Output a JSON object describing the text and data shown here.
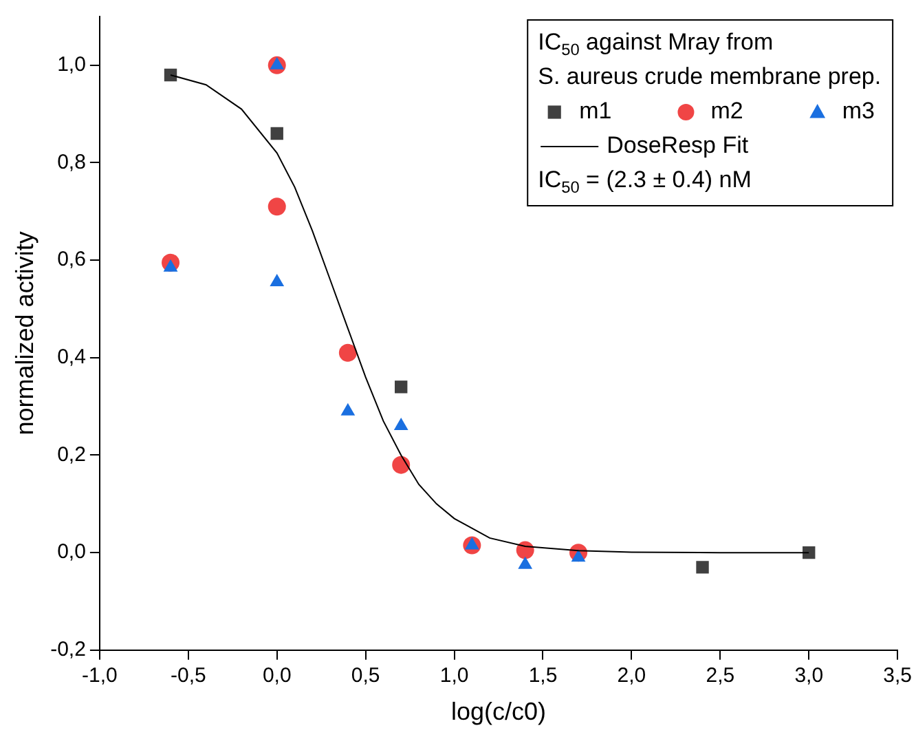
{
  "chart_data": {
    "type": "scatter",
    "xlabel": "log(c/c0)",
    "ylabel": "normalized activity",
    "legend_title": "IC$_{50}$ against Mray from\nS. aureus crude membrane prep.",
    "annotations": [
      "IC$_{50}$ = (2.3 ± 0.4) nM"
    ],
    "legend": "top right",
    "grid": false,
    "xlim": [
      -1.0,
      3.5
    ],
    "xticks": [
      {
        "value": -1.0,
        "label": "-1,0"
      },
      {
        "value": -0.5,
        "label": "-0,5"
      },
      {
        "value": 0,
        "label": "0,0"
      },
      {
        "value": 0.5,
        "label": "0,5"
      },
      {
        "value": 1.0,
        "label": "1,0"
      },
      {
        "value": 1.5,
        "label": "1,5"
      },
      {
        "value": 2.0,
        "label": "2,0"
      },
      {
        "value": 2.5,
        "label": "2,5"
      },
      {
        "value": 3.0,
        "label": "3,0"
      },
      {
        "value": 3.5,
        "label": "3,5"
      }
    ],
    "ylim": [
      -0.2,
      1.1
    ],
    "yticks": [
      {
        "value": -0.2,
        "label": "-0,2"
      },
      {
        "value": 0,
        "label": "0,0"
      },
      {
        "value": 0.2,
        "label": "0,2"
      },
      {
        "value": 0.4,
        "label": "0,4"
      },
      {
        "value": 0.6,
        "label": "0,6"
      },
      {
        "value": 0.8,
        "label": "0,8"
      },
      {
        "value": 1.0,
        "label": "1,0"
      }
    ],
    "series": [
      {
        "name": "m1",
        "marker": "square",
        "color": "#404040",
        "x": [
          -0.6,
          0,
          0.7,
          2.4,
          3.0
        ],
        "values": [
          0.98,
          0.86,
          0.34,
          -0.03,
          0.0
        ]
      },
      {
        "name": "m2",
        "marker": "circle",
        "color": "#f04545",
        "x": [
          -0.6,
          0,
          0,
          0.4,
          0.7,
          1.1,
          1.4,
          1.7
        ],
        "values": [
          0.595,
          1.0,
          0.71,
          0.41,
          0.18,
          0.015,
          0.005,
          0.0
        ]
      },
      {
        "name": "m3",
        "marker": "triangle",
        "color": "#1a6fe0",
        "x": [
          -0.6,
          0,
          0,
          0.4,
          0.7,
          1.1,
          1.4,
          1.7
        ],
        "values": [
          0.585,
          1.0,
          0.555,
          0.29,
          0.26,
          0.015,
          -0.025,
          -0.01
        ]
      },
      {
        "name": "DoseResp Fit",
        "type": "line",
        "marker": "none",
        "line_style": "solid",
        "color": "#000000",
        "x": [
          -0.6,
          -0.4,
          -0.2,
          0,
          0.1,
          0.2,
          0.3,
          0.4,
          0.5,
          0.6,
          0.7,
          0.8,
          0.9,
          1.0,
          1.2,
          1.4,
          1.7,
          2.0,
          2.5,
          3.0
        ],
        "values": [
          0.98,
          0.96,
          0.91,
          0.82,
          0.75,
          0.66,
          0.56,
          0.46,
          0.36,
          0.27,
          0.2,
          0.14,
          0.1,
          0.07,
          0.03,
          0.013,
          0.004,
          0.001,
          0.0,
          0.0
        ]
      }
    ]
  }
}
